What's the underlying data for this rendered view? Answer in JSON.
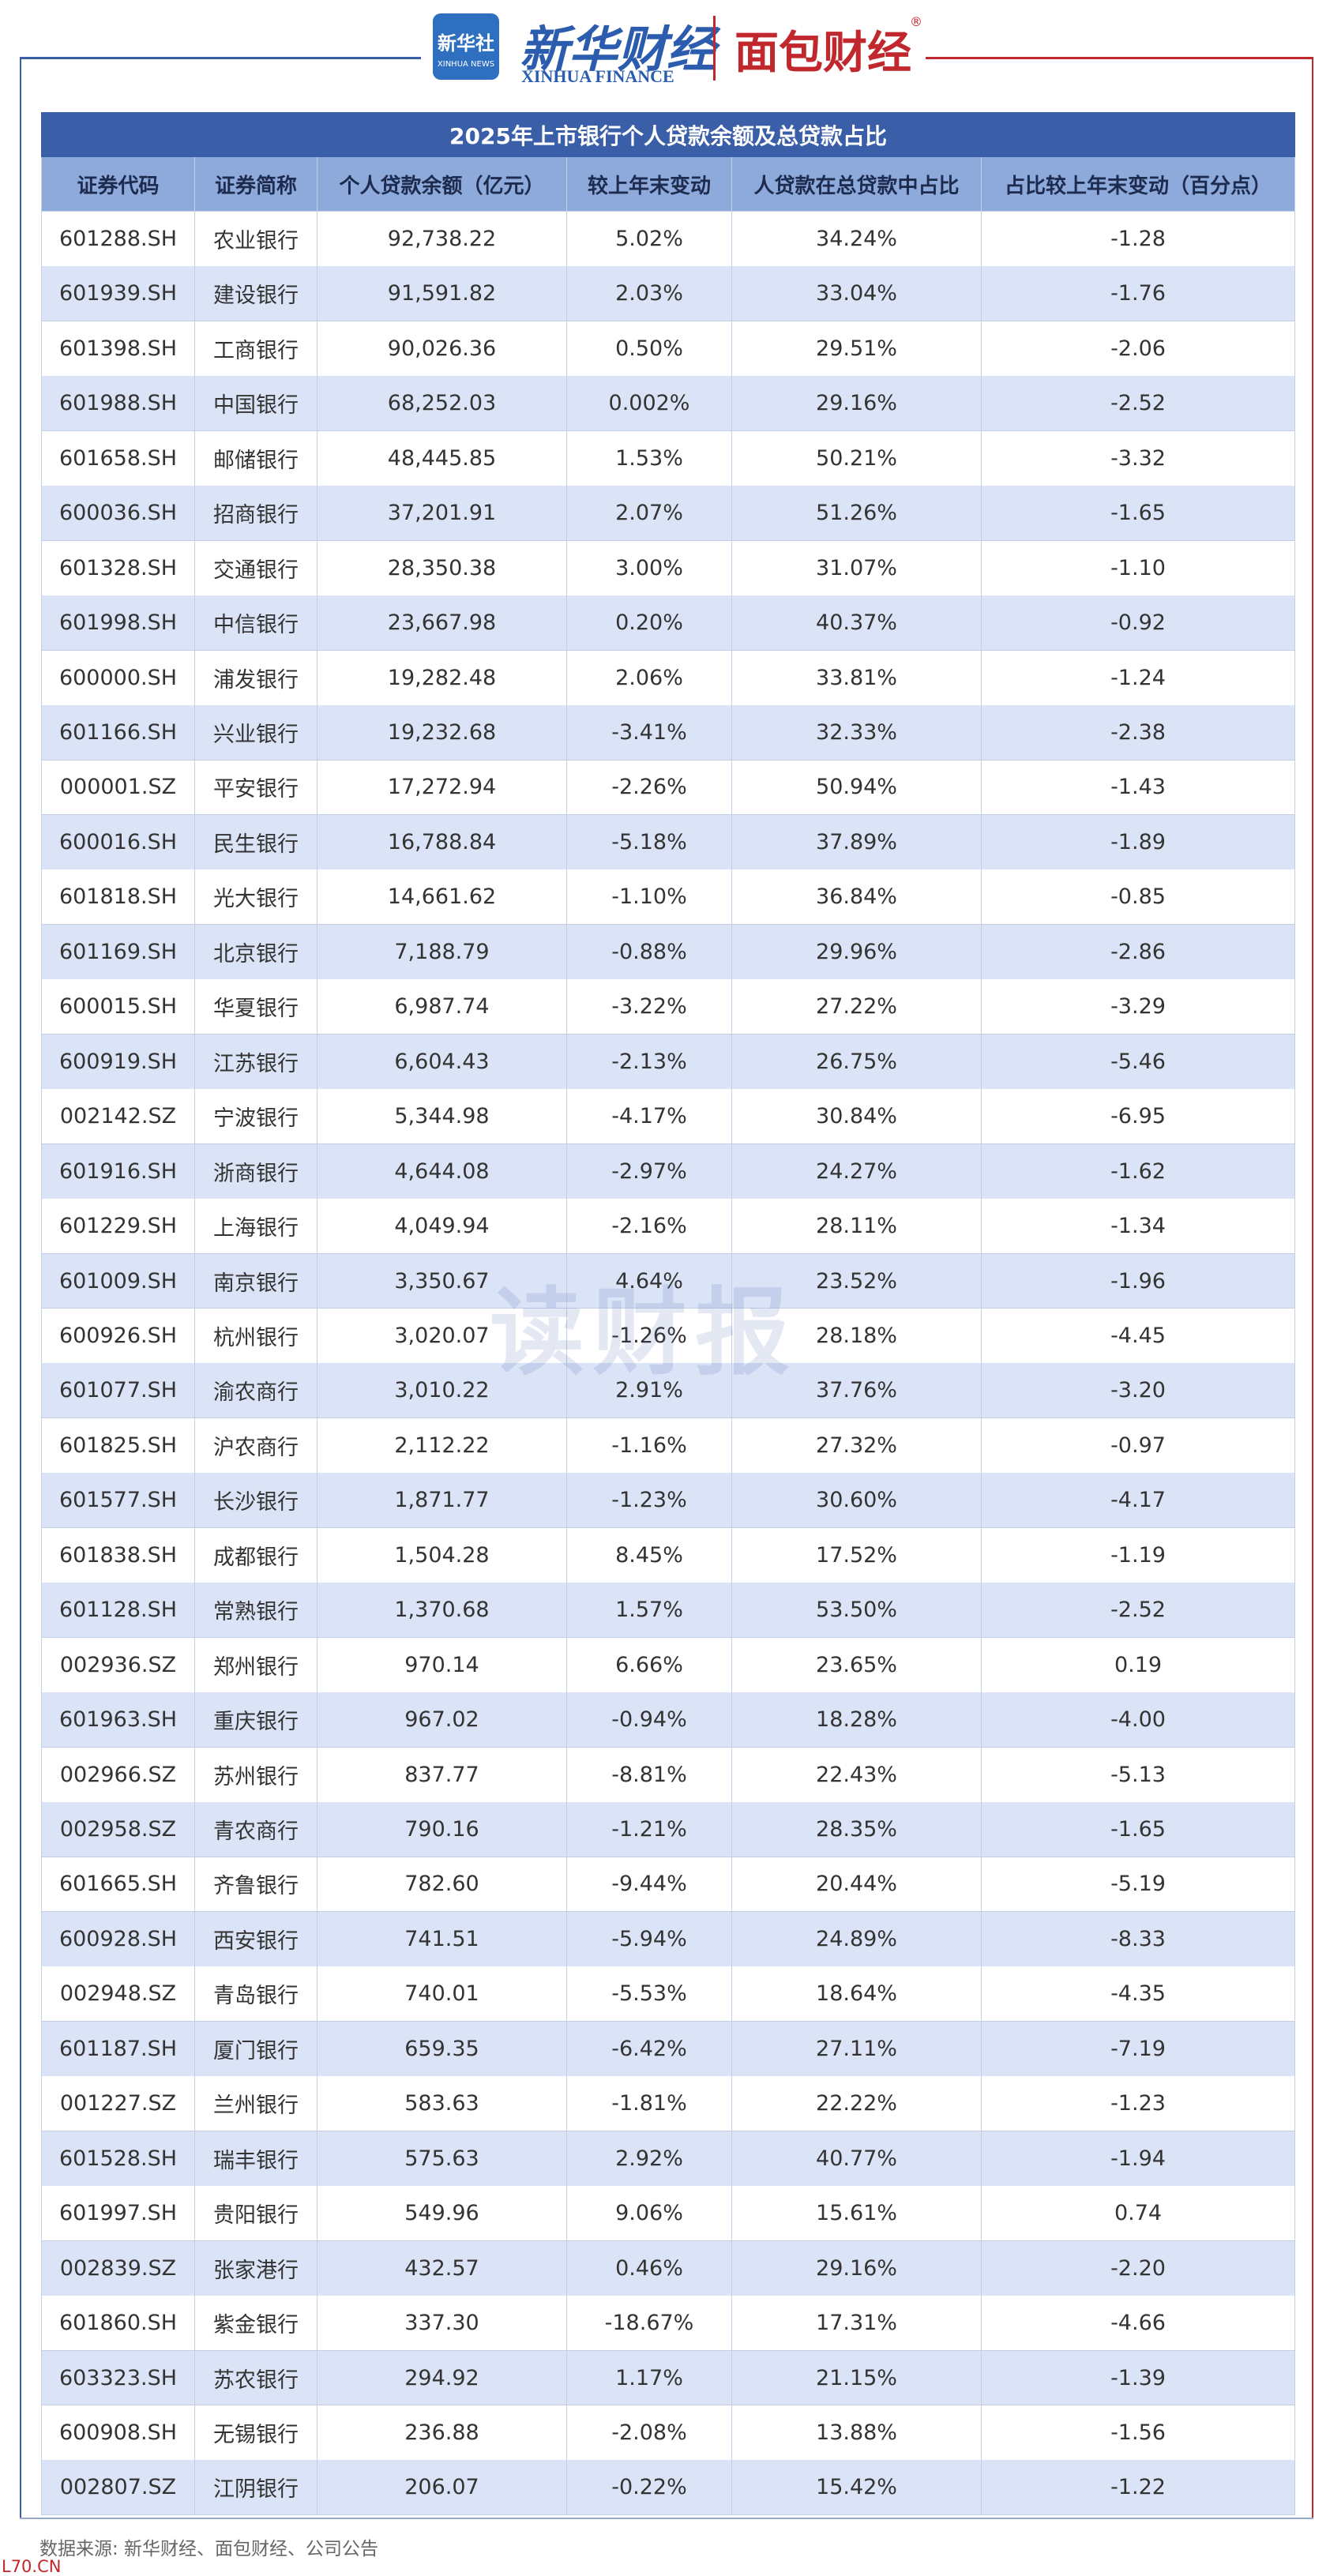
{
  "header": {
    "xinhua_logo": "新华社",
    "xinhua_logo_en": "XINHUA NEWS",
    "brand": "新华财经",
    "brand_en": "XINHUA FINANCE",
    "partner": "面包财经",
    "registered": "®"
  },
  "table": {
    "title": "2025年上市银行个人贷款余额及总贷款占比",
    "headers": [
      "证券代码",
      "证券简称",
      "个人贷款余额（亿元）",
      "较上年末变动",
      "人贷款在总贷款中占比",
      "占比较上年末变动（百分点）"
    ],
    "rows": [
      [
        "601288.SH",
        "农业银行",
        "92,738.22",
        "5.02%",
        "34.24%",
        "-1.28"
      ],
      [
        "601939.SH",
        "建设银行",
        "91,591.82",
        "2.03%",
        "33.04%",
        "-1.76"
      ],
      [
        "601398.SH",
        "工商银行",
        "90,026.36",
        "0.50%",
        "29.51%",
        "-2.06"
      ],
      [
        "601988.SH",
        "中国银行",
        "68,252.03",
        "0.002%",
        "29.16%",
        "-2.52"
      ],
      [
        "601658.SH",
        "邮储银行",
        "48,445.85",
        "1.53%",
        "50.21%",
        "-3.32"
      ],
      [
        "600036.SH",
        "招商银行",
        "37,201.91",
        "2.07%",
        "51.26%",
        "-1.65"
      ],
      [
        "601328.SH",
        "交通银行",
        "28,350.38",
        "3.00%",
        "31.07%",
        "-1.10"
      ],
      [
        "601998.SH",
        "中信银行",
        "23,667.98",
        "0.20%",
        "40.37%",
        "-0.92"
      ],
      [
        "600000.SH",
        "浦发银行",
        "19,282.48",
        "2.06%",
        "33.81%",
        "-1.24"
      ],
      [
        "601166.SH",
        "兴业银行",
        "19,232.68",
        "-3.41%",
        "32.33%",
        "-2.38"
      ],
      [
        "000001.SZ",
        "平安银行",
        "17,272.94",
        "-2.26%",
        "50.94%",
        "-1.43"
      ],
      [
        "600016.SH",
        "民生银行",
        "16,788.84",
        "-5.18%",
        "37.89%",
        "-1.89"
      ],
      [
        "601818.SH",
        "光大银行",
        "14,661.62",
        "-1.10%",
        "36.84%",
        "-0.85"
      ],
      [
        "601169.SH",
        "北京银行",
        "7,188.79",
        "-0.88%",
        "29.96%",
        "-2.86"
      ],
      [
        "600015.SH",
        "华夏银行",
        "6,987.74",
        "-3.22%",
        "27.22%",
        "-3.29"
      ],
      [
        "600919.SH",
        "江苏银行",
        "6,604.43",
        "-2.13%",
        "26.75%",
        "-5.46"
      ],
      [
        "002142.SZ",
        "宁波银行",
        "5,344.98",
        "-4.17%",
        "30.84%",
        "-6.95"
      ],
      [
        "601916.SH",
        "浙商银行",
        "4,644.08",
        "-2.97%",
        "24.27%",
        "-1.62"
      ],
      [
        "601229.SH",
        "上海银行",
        "4,049.94",
        "-2.16%",
        "28.11%",
        "-1.34"
      ],
      [
        "601009.SH",
        "南京银行",
        "3,350.67",
        "4.64%",
        "23.52%",
        "-1.96"
      ],
      [
        "600926.SH",
        "杭州银行",
        "3,020.07",
        "-1.26%",
        "28.18%",
        "-4.45"
      ],
      [
        "601077.SH",
        "渝农商行",
        "3,010.22",
        "2.91%",
        "37.76%",
        "-3.20"
      ],
      [
        "601825.SH",
        "沪农商行",
        "2,112.22",
        "-1.16%",
        "27.32%",
        "-0.97"
      ],
      [
        "601577.SH",
        "长沙银行",
        "1,871.77",
        "-1.23%",
        "30.60%",
        "-4.17"
      ],
      [
        "601838.SH",
        "成都银行",
        "1,504.28",
        "8.45%",
        "17.52%",
        "-1.19"
      ],
      [
        "601128.SH",
        "常熟银行",
        "1,370.68",
        "1.57%",
        "53.50%",
        "-2.52"
      ],
      [
        "002936.SZ",
        "郑州银行",
        "970.14",
        "6.66%",
        "23.65%",
        "0.19"
      ],
      [
        "601963.SH",
        "重庆银行",
        "967.02",
        "-0.94%",
        "18.28%",
        "-4.00"
      ],
      [
        "002966.SZ",
        "苏州银行",
        "837.77",
        "-8.81%",
        "22.43%",
        "-5.13"
      ],
      [
        "002958.SZ",
        "青农商行",
        "790.16",
        "-1.21%",
        "28.35%",
        "-1.65"
      ],
      [
        "601665.SH",
        "齐鲁银行",
        "782.60",
        "-9.44%",
        "20.44%",
        "-5.19"
      ],
      [
        "600928.SH",
        "西安银行",
        "741.51",
        "-5.94%",
        "24.89%",
        "-8.33"
      ],
      [
        "002948.SZ",
        "青岛银行",
        "740.01",
        "-5.53%",
        "18.64%",
        "-4.35"
      ],
      [
        "601187.SH",
        "厦门银行",
        "659.35",
        "-6.42%",
        "27.11%",
        "-7.19"
      ],
      [
        "001227.SZ",
        "兰州银行",
        "583.63",
        "-1.81%",
        "22.22%",
        "-1.23"
      ],
      [
        "601528.SH",
        "瑞丰银行",
        "575.63",
        "2.92%",
        "40.77%",
        "-1.94"
      ],
      [
        "601997.SH",
        "贵阳银行",
        "549.96",
        "9.06%",
        "15.61%",
        "0.74"
      ],
      [
        "002839.SZ",
        "张家港行",
        "432.57",
        "0.46%",
        "29.16%",
        "-2.20"
      ],
      [
        "601860.SH",
        "紫金银行",
        "337.30",
        "-18.67%",
        "17.31%",
        "-4.66"
      ],
      [
        "603323.SH",
        "苏农银行",
        "294.92",
        "1.17%",
        "21.15%",
        "-1.39"
      ],
      [
        "600908.SH",
        "无锡银行",
        "236.88",
        "-2.08%",
        "13.88%",
        "-1.56"
      ],
      [
        "002807.SZ",
        "江阴银行",
        "206.07",
        "-0.22%",
        "15.42%",
        "-1.22"
      ]
    ]
  },
  "watermark": "读财报",
  "footer": {
    "source": "数据来源: 新华财经、面包财经、公司公告",
    "site": "L70.CN"
  }
}
